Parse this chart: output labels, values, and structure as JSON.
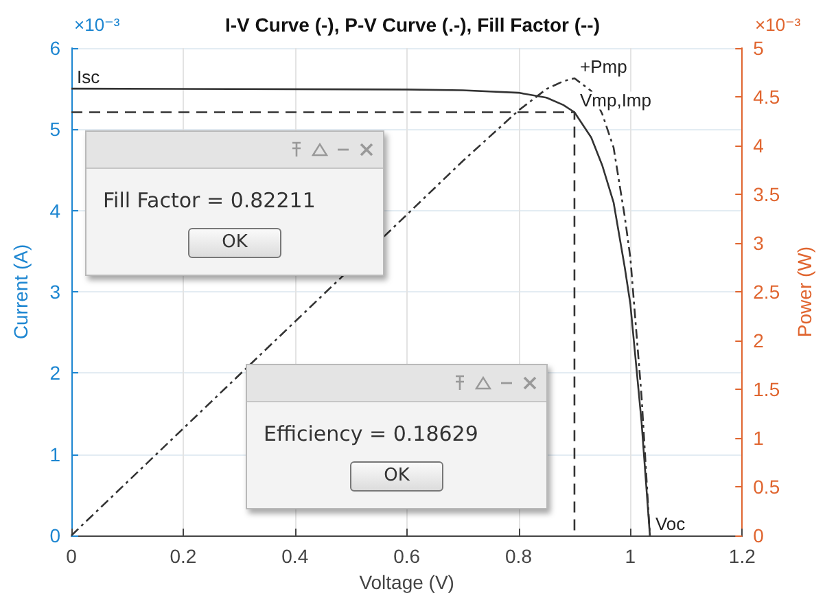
{
  "chart_data": {
    "type": "line",
    "title": "I-V Curve (-), P-V Curve (.-), Fill Factor (--)",
    "xlabel": "Voltage (V)",
    "ylabel": "Current (A)",
    "y2label": "Power (W)",
    "xlim": [
      0,
      1.2
    ],
    "xticks": [
      0,
      0.2,
      0.4,
      0.6,
      0.8,
      1,
      1.2
    ],
    "ylim": [
      0,
      6
    ],
    "yticks": [
      0,
      1,
      2,
      3,
      4,
      5,
      6
    ],
    "y2lim": [
      0,
      5
    ],
    "y2ticks": [
      0,
      0.5,
      1,
      1.5,
      2,
      2.5,
      3,
      3.5,
      4,
      4.5,
      5
    ],
    "grid": true,
    "marker": "none",
    "series": [
      {
        "color": "#333333",
        "line_style": "solid",
        "x": [
          0,
          0.6,
          0.7,
          0.8,
          0.85,
          0.88,
          0.9,
          0.93,
          0.95,
          0.97,
          0.99,
          1.0,
          1.02,
          1.035
        ],
        "values": [
          5.5,
          5.49,
          5.48,
          5.45,
          5.39,
          5.3,
          5.21,
          4.9,
          4.55,
          4.1,
          3.3,
          2.85,
          1.4,
          0
        ]
      },
      {
        "color": "#333333",
        "line_style": "dashdot",
        "axis": "y2",
        "x": [
          0,
          0.6,
          0.7,
          0.8,
          0.85,
          0.88,
          0.9,
          0.93,
          0.95,
          0.97,
          0.99,
          1.0,
          1.02,
          1.035
        ],
        "values": [
          0,
          3.29,
          3.84,
          4.36,
          4.58,
          4.66,
          4.69,
          4.56,
          4.32,
          3.98,
          3.27,
          2.85,
          1.43,
          0
        ]
      },
      {
        "color": "#333333",
        "line_style": "dashed",
        "x": [
          0,
          0.9,
          0.9
        ],
        "values": [
          5.21,
          5.21,
          0
        ]
      }
    ],
    "annotations": [
      {
        "text": "Isc",
        "x": 0,
        "y": 5.5
      },
      {
        "text": "+Pmp",
        "x": 0.9,
        "y": 5.63
      },
      {
        "text": "Vmp,Imp",
        "x": 0.9,
        "y": 5.21
      },
      {
        "text": "Voc",
        "x": 1.035,
        "y": 0
      },
      "×10⁻³",
      "×10⁻³",
      "Fill Factor = 0.82211",
      "OK",
      "Efficiency = 0.18629",
      "OK"
    ]
  }
}
